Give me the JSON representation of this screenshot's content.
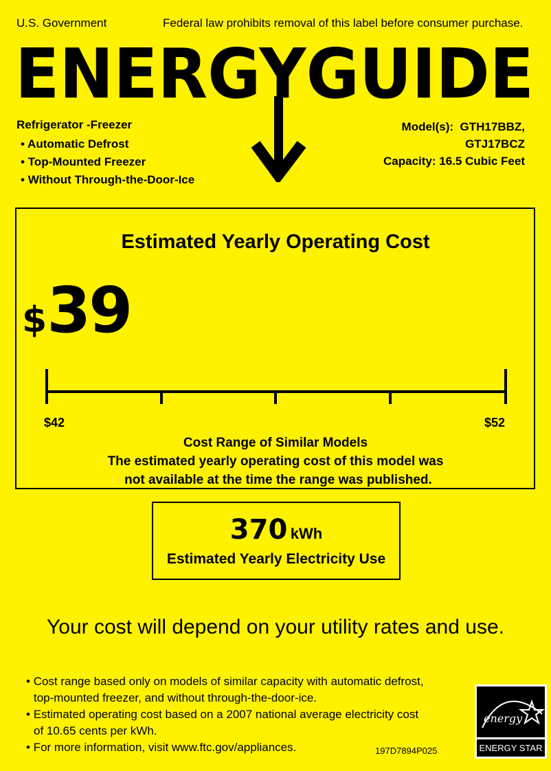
{
  "header": {
    "left": "U.S. Government",
    "right": "Federal law prohibits removal of this label before consumer purchase."
  },
  "logo": {
    "text": "ENERGYGUIDE",
    "arrow_icon": "down-arrow"
  },
  "product": {
    "type": "Refrigerator -Freezer",
    "features": [
      "Automatic Defrost",
      "Top-Mounted Freezer",
      "Without Through-the-Door-Ice"
    ],
    "models_label": "Model(s):",
    "models": [
      "GTH17BBZ,",
      "GTJ17BCZ"
    ],
    "capacity": "Capacity: 16.5 Cubic Feet"
  },
  "cost": {
    "heading": "Estimated Yearly Operating Cost",
    "currency": "$",
    "value": "39",
    "range_min": "$42",
    "range_max": "$52",
    "range_title": "Cost Range of Similar Models",
    "note_line1": "The estimated yearly operating cost of this model was",
    "note_line2": "not available at the time the range was published."
  },
  "electricity": {
    "value": "370",
    "unit": "kWh",
    "label": "Estimated Yearly Electricity Use"
  },
  "disclaimer": "Your cost will depend on your utility rates and use.",
  "footnotes": [
    [
      "Cost range based only on models of similar capacity with automatic defrost,",
      "top-mounted freezer, and without through-the-door-ice."
    ],
    [
      "Estimated operating cost based on a 2007 national average electricity cost",
      "of 10.65 cents per kWh."
    ],
    [
      "For more information, visit www.ftc.gov/appliances.",
      ""
    ]
  ],
  "label_code": "197D7894P025",
  "energy_star": {
    "script": "energy",
    "label": "ENERGY STAR"
  },
  "colors": {
    "background": "#fff200",
    "ink": "#000000"
  }
}
